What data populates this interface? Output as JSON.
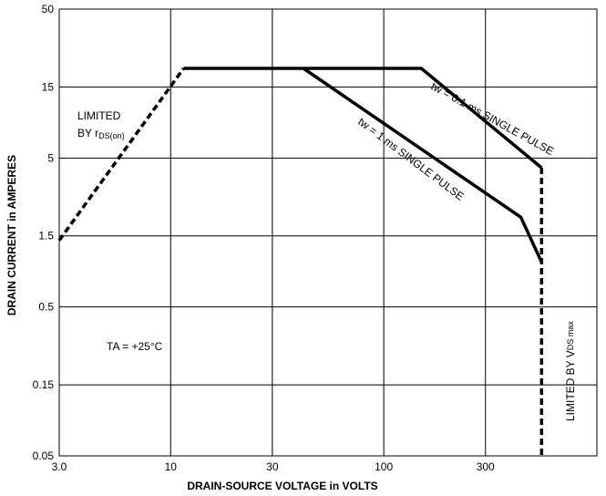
{
  "chart_data": {
    "type": "line",
    "title": "",
    "xlabel": "DRAIN-SOURCE VOLTAGE in VOLTS",
    "ylabel": "DRAIN CURRENT in AMPERES",
    "xscale": "log",
    "yscale": "log",
    "xlim": [
      3.0,
      1000
    ],
    "ylim": [
      0.05,
      50
    ],
    "xticks": [
      3.0,
      10,
      30,
      100,
      300
    ],
    "xtick_labels": [
      "3.0",
      "10",
      "30",
      "100",
      "300"
    ],
    "yticks": [
      0.05,
      0.15,
      0.5,
      1.5,
      5,
      15,
      50
    ],
    "ytick_labels": [
      "0.05",
      "0.15",
      "0.5",
      "1.5",
      "5",
      "15",
      "50"
    ],
    "grid": true,
    "series": [
      {
        "style": "dashed",
        "x": [
          3.0,
          11.5
        ],
        "y": [
          1.4,
          20
        ]
      },
      {
        "style": "solid",
        "x": [
          11.5,
          150,
          550
        ],
        "y": [
          20,
          20,
          4.3
        ]
      },
      {
        "style": "solid",
        "x": [
          42,
          440,
          550
        ],
        "y": [
          20,
          2.0,
          1.0
        ]
      },
      {
        "style": "dashed",
        "x": [
          550,
          550
        ],
        "y": [
          4.3,
          0.05
        ]
      }
    ],
    "annotations": {
      "limited_rds_line1": "LIMITED",
      "limited_rds_line2_main": "BY r",
      "limited_rds_line2_sub": "DS(on)",
      "ta_label": "TA = +25°C",
      "tw01_label": "tw = 0.1 ms SINGLE PULSE",
      "tw1_label": "tw = 1 ms SINGLE PULSE",
      "limited_vds_main": "LIMITED BY V",
      "limited_vds_sub": "DS max"
    }
  }
}
